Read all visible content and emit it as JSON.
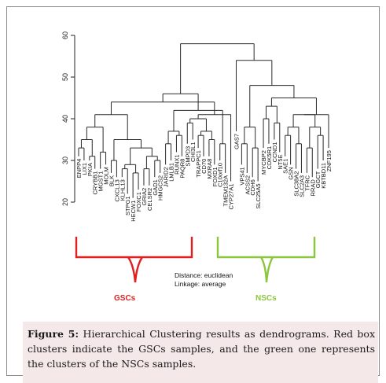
{
  "figure": {
    "y_ticks": [
      20,
      30,
      40,
      50,
      60
    ],
    "distance_label": "Distance: euclidean",
    "linkage_label": "Linkage: average",
    "groups": [
      {
        "label": "GSCs",
        "color": "#e02020"
      },
      {
        "label": "NSCs",
        "color": "#8cc63f"
      }
    ],
    "leaves": [
      "ENPP4",
      "LIX1",
      "PKIA",
      "CRYBB1",
      "MGST1",
      "MOLM",
      "BLK",
      "CXCL13",
      "KLHL13",
      "STPG1",
      "HECW1",
      "FOXC1",
      "GRIA2",
      "CELSR2",
      "GAD1",
      "HMGCS2",
      "JARID2",
      "LMLB1",
      "RUNX1",
      "PAQR8",
      "SMPD3",
      "CHI3L1",
      "TRAPPC1",
      "CD70",
      "MXRA8",
      "FOXD1",
      "C10orf10",
      "TMEM132A",
      "CYP27A1",
      "GAS7",
      "VPS41",
      "ACSS2",
      "CDH6",
      "SLC25A5",
      "MYCBP2",
      "CDK5R1",
      "CCND1",
      "NT5E",
      "SAE1",
      "GSN",
      "SLC38A2",
      "SLC2A3",
      "TFRC",
      "RRAD",
      "GGCT",
      "KBTBD11",
      "ZNF195"
    ]
  },
  "caption": {
    "label": "Figure 5:",
    "text": " Hierarchical Clustering results as dendrograms. Red box clusters indicate the GSCs samples, and the green one represents the clusters of the NSCs samples."
  }
}
